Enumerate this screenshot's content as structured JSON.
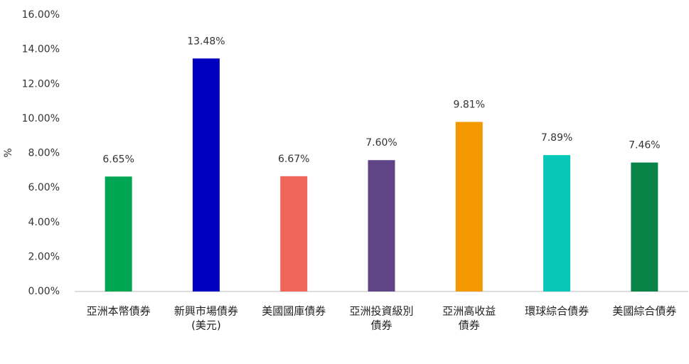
{
  "chart_data": {
    "type": "bar",
    "y_label": "%",
    "categories": [
      [
        "亞洲本幣債券"
      ],
      [
        "新興市場債券",
        "(美元)"
      ],
      [
        "美國國庫債券"
      ],
      [
        "亞洲投資級別",
        "債券"
      ],
      [
        "亞洲高收益",
        "債券"
      ],
      [
        "環球綜合債券"
      ],
      [
        "美國綜合債券"
      ]
    ],
    "values": [
      6.65,
      13.48,
      6.67,
      7.6,
      9.81,
      7.89,
      7.46
    ],
    "value_labels": [
      "6.65%",
      "13.48%",
      "6.67%",
      "7.60%",
      "9.81%",
      "7.89%",
      "7.46%"
    ],
    "colors": [
      "#00a651",
      "#0000c0",
      "#ef6658",
      "#5f4585",
      "#f39800",
      "#07c8b8",
      "#078348"
    ],
    "ylim": [
      0,
      16
    ],
    "yticks": [
      {
        "value": 0,
        "label": "0.00%"
      },
      {
        "value": 2,
        "label": "2.00%"
      },
      {
        "value": 4,
        "label": "4.00%"
      },
      {
        "value": 6,
        "label": "6.00%"
      },
      {
        "value": 8,
        "label": "8.00%"
      },
      {
        "value": 10,
        "label": "10.00%"
      },
      {
        "value": 12,
        "label": "12.00%"
      },
      {
        "value": 14,
        "label": "14.00%"
      },
      {
        "value": 16,
        "label": "16.00%"
      }
    ],
    "grid": false
  }
}
